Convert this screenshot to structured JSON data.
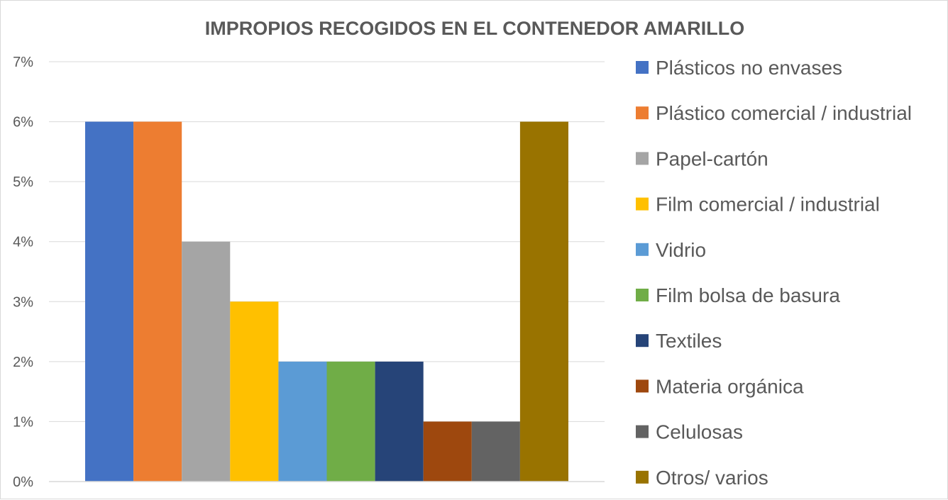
{
  "chart_data": {
    "type": "bar",
    "title": "IMPROPIOS RECOGIDOS EN EL CONTENEDOR  AMARILLO",
    "xlabel": "",
    "ylabel": "",
    "ylim": [
      0,
      7
    ],
    "y_ticks": [
      "0%",
      "1%",
      "2%",
      "3%",
      "4%",
      "5%",
      "6%",
      "7%"
    ],
    "grid": true,
    "legend_position": "right",
    "series": [
      {
        "name": "Plásticos no envases",
        "value": 6,
        "color": "#4472C4"
      },
      {
        "name": "Plástico comercial / industrial",
        "value": 6,
        "color": "#ED7D31"
      },
      {
        "name": "Papel-cartón",
        "value": 4,
        "color": "#A5A5A5"
      },
      {
        "name": "Film comercial / industrial",
        "value": 3,
        "color": "#FFC000"
      },
      {
        "name": "Vidrio",
        "value": 2,
        "color": "#5B9BD5"
      },
      {
        "name": "Film bolsa de basura",
        "value": 2,
        "color": "#70AD47"
      },
      {
        "name": "Textiles",
        "value": 2,
        "color": "#264478"
      },
      {
        "name": "Materia orgánica",
        "value": 1,
        "color": "#9E480E"
      },
      {
        "name": "Celulosas",
        "value": 1,
        "color": "#636363"
      },
      {
        "name": "Otros/ varios",
        "value": 6,
        "color": "#997300"
      }
    ]
  }
}
